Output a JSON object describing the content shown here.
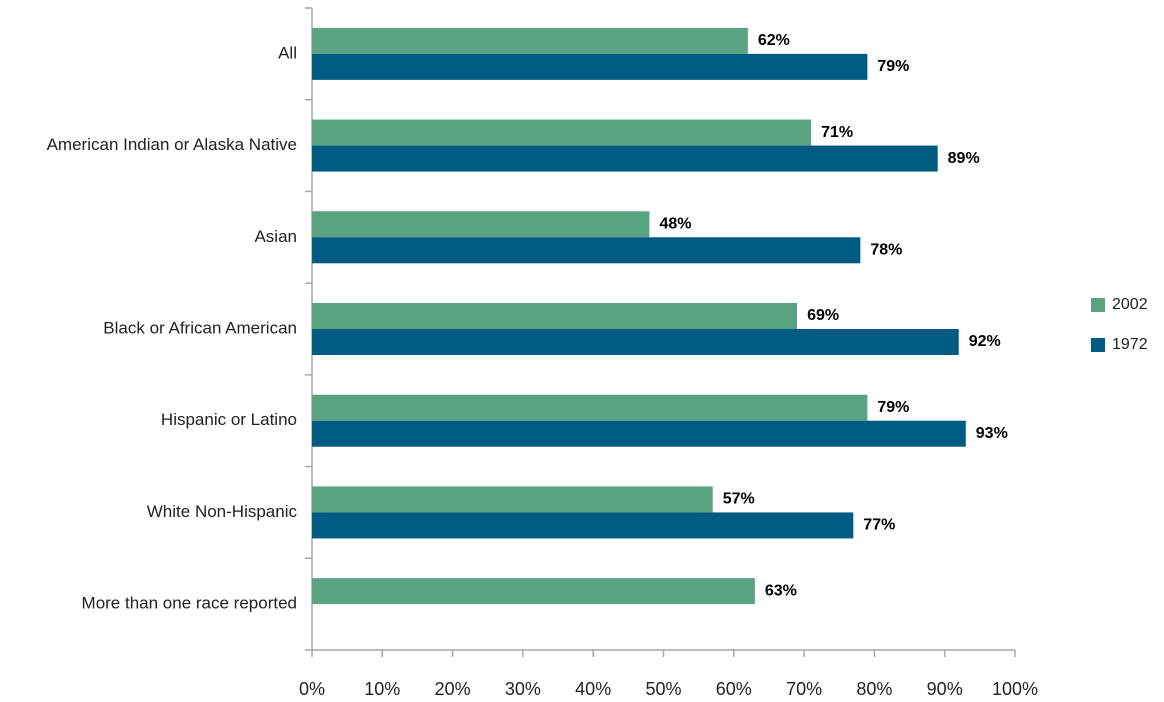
{
  "chart_data": {
    "type": "hbar",
    "categories": [
      "All",
      "American Indian or Alaska Native",
      "Asian",
      "Black or African American",
      "Hispanic or Latino",
      "White Non-Hispanic",
      "More than one race reported"
    ],
    "series": [
      {
        "name": "2002",
        "color": "#5aa382",
        "values": [
          62,
          71,
          48,
          69,
          79,
          57,
          63
        ],
        "value_labels": [
          "62%",
          "71%",
          "48%",
          "69%",
          "79%",
          "57%",
          "63%"
        ]
      },
      {
        "name": "1972",
        "color": "#005b82",
        "values": [
          79,
          89,
          78,
          92,
          93,
          77,
          null
        ],
        "value_labels": [
          "79%",
          "89%",
          "78%",
          "92%",
          "93%",
          "77%",
          null
        ]
      }
    ],
    "xlim": [
      0,
      100
    ],
    "xticks": [
      {
        "value": 0,
        "label": "0%"
      },
      {
        "value": 10,
        "label": "10%"
      },
      {
        "value": 20,
        "label": "20%"
      },
      {
        "value": 30,
        "label": "30%"
      },
      {
        "value": 40,
        "label": "40%"
      },
      {
        "value": 50,
        "label": "50%"
      },
      {
        "value": 60,
        "label": "60%"
      },
      {
        "value": 70,
        "label": "70%"
      },
      {
        "value": 80,
        "label": "80%"
      },
      {
        "value": 90,
        "label": "90%"
      },
      {
        "value": 100,
        "label": "100%"
      }
    ],
    "legend": "right"
  }
}
